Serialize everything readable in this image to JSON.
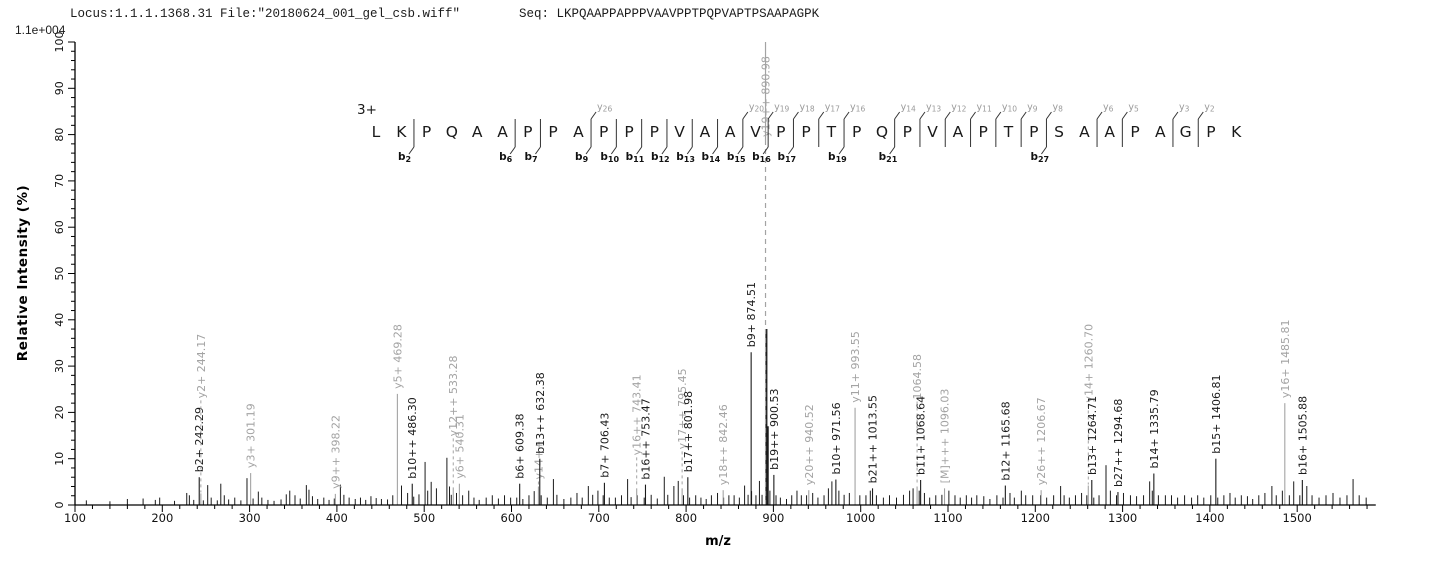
{
  "header": {
    "locus_file": "Locus:1.1.1.1368.31 File:\"20180624_001_gel_csb.wiff\"",
    "seq_label": "Seq:",
    "seq_value": "LKPQAAPPAPPPVAAVPPTPQPVAPTPSAAPAGPK",
    "max_intensity": "1.1e+004"
  },
  "colors": {
    "b_ion": "#1a1a1a",
    "y_ion": "#a3a3a3",
    "axis": "#000000",
    "background_peak": "#1a1a1a",
    "precursor_dash": "#a3a3a3"
  },
  "sequence_annotation": {
    "charge_label": "3+",
    "sequence": "LKPQAAPPAPPPVAAVPPTPQPVAPTPSAAPAGPK",
    "b_ions": [
      2,
      6,
      7,
      9,
      10,
      11,
      12,
      13,
      14,
      15,
      16,
      17,
      19,
      21,
      27
    ],
    "y_ions": [
      {
        "label": "26",
        "after_residue": 9
      },
      {
        "label": "20",
        "after_residue": 15
      },
      {
        "label": "19",
        "after_residue": 16
      },
      {
        "label": "18",
        "after_residue": 17
      },
      {
        "label": "17",
        "after_residue": 18
      },
      {
        "label": "16",
        "after_residue": 19
      },
      {
        "label": "14",
        "after_residue": 21
      },
      {
        "label": "13",
        "after_residue": 22
      },
      {
        "label": "12",
        "after_residue": 23
      },
      {
        "label": "11",
        "after_residue": 24
      },
      {
        "label": "10",
        "after_residue": 25
      },
      {
        "label": "9",
        "after_residue": 26
      },
      {
        "label": "8",
        "after_residue": 27
      },
      {
        "label": "6",
        "after_residue": 29
      },
      {
        "label": "5",
        "after_residue": 30
      },
      {
        "label": "3",
        "after_residue": 32
      },
      {
        "label": "2",
        "after_residue": 33
      }
    ]
  },
  "chart_data": {
    "type": "bar",
    "subtype": "ms2-fragment-centroid-spectrum",
    "title": "",
    "xlabel": "m/z",
    "ylabel": "Relative  Intensity  (%)",
    "x_range": [
      100,
      1590
    ],
    "y_range": [
      0,
      100
    ],
    "x_major_tick": 100,
    "x_minor_tick": 20,
    "y_major_tick": 10,
    "y_minor_tick": 2,
    "x_tick_labels": [
      100,
      200,
      300,
      400,
      500,
      600,
      700,
      800,
      900,
      1000,
      1100,
      1200,
      1300,
      1400,
      1500
    ],
    "y_tick_labels": [
      0,
      10,
      20,
      30,
      40,
      50,
      60,
      70,
      80,
      90,
      100
    ],
    "grid": false,
    "max_intensity_counts": "1.1e+004",
    "labeled_peaks": [
      {
        "mz": 242.29,
        "intensity_pct": 6.0,
        "ion": "b",
        "label": "b2+ 242.29"
      },
      {
        "mz": 244.17,
        "intensity_pct": 2.5,
        "ion": "y",
        "label": "y2+ 244.17",
        "raise": 90,
        "dashed_leader": true
      },
      {
        "mz": 301.19,
        "intensity_pct": 6.9,
        "ion": "y",
        "label": "y3+ 301.19"
      },
      {
        "mz": 398.22,
        "intensity_pct": 2.4,
        "ion": "y",
        "label": "y9++ 398.22"
      },
      {
        "mz": 469.28,
        "intensity_pct": 24,
        "ion": "y",
        "label": "y5+ 469.28"
      },
      {
        "mz": 486.3,
        "intensity_pct": 4.6,
        "ion": "b",
        "label": "b10++ 486.30"
      },
      {
        "mz": 533.28,
        "intensity_pct": 3.8,
        "ion": "y",
        "label": "y12++ 533.28",
        "raise": 46,
        "dashed_leader": true
      },
      {
        "mz": 540.31,
        "intensity_pct": 4.6,
        "ion": "y",
        "label": "y6+ 540.31"
      },
      {
        "mz": 609.38,
        "intensity_pct": 4.6,
        "ion": "b",
        "label": "b6+ 609.38"
      },
      {
        "mz": 630.85,
        "intensity_pct": 4.0,
        "ion": "y",
        "label": "y14++",
        "raise": 2,
        "dashed_leader": true
      },
      {
        "mz": 632.38,
        "intensity_pct": 10,
        "ion": "b",
        "label": "b13++ 632.38"
      },
      {
        "mz": 706.43,
        "intensity_pct": 4.8,
        "ion": "b",
        "label": "b7+ 706.43"
      },
      {
        "mz": 743.41,
        "intensity_pct": 3.6,
        "ion": "y",
        "label": "y16++ 743.41",
        "raise": 28,
        "dashed_leader": true
      },
      {
        "mz": 753.47,
        "intensity_pct": 4.4,
        "ion": "b",
        "label": "b16++ 753.47"
      },
      {
        "mz": 795.45,
        "intensity_pct": 3.6,
        "ion": "y",
        "label": "y17++ 795.45",
        "raise": 34,
        "dashed_leader": true
      },
      {
        "mz": 801.98,
        "intensity_pct": 6.0,
        "ion": "b",
        "label": "b17++ 801.98"
      },
      {
        "mz": 842.46,
        "intensity_pct": 3.2,
        "ion": "y",
        "label": "y18++ 842.46"
      },
      {
        "mz": 874.51,
        "intensity_pct": 33,
        "ion": "b",
        "label": "b9+ 874.51"
      },
      {
        "mz": 890.98,
        "intensity_pct": 100,
        "ion": "y",
        "label": "y19++ 890.98",
        "dashed_line": true,
        "label_drop": 100
      },
      {
        "mz": 900.53,
        "intensity_pct": 6.5,
        "ion": "b",
        "label": "b19++ 900.53"
      },
      {
        "mz": 940.52,
        "intensity_pct": 3.2,
        "ion": "y",
        "label": "y20++ 940.52"
      },
      {
        "mz": 971.56,
        "intensity_pct": 5.5,
        "ion": "b",
        "label": "b10+ 971.56"
      },
      {
        "mz": 993.55,
        "intensity_pct": 21,
        "ion": "y",
        "label": "y11+ 993.55"
      },
      {
        "mz": 1013.55,
        "intensity_pct": 3.6,
        "ion": "b",
        "label": "b21++ 1013.55"
      },
      {
        "mz": 1064.58,
        "intensity_pct": 4.0,
        "ion": "y",
        "label": "1064.58",
        "raise": 82,
        "dashed_leader": true
      },
      {
        "mz": 1068.64,
        "intensity_pct": 5.4,
        "ion": "b",
        "label": "b11+ 1068.64"
      },
      {
        "mz": 1096.03,
        "intensity_pct": 3.6,
        "ion": "y",
        "label": "[M]+++ 1096.03"
      },
      {
        "mz": 1165.68,
        "intensity_pct": 4.2,
        "ion": "b",
        "label": "b12+ 1165.68"
      },
      {
        "mz": 1206.67,
        "intensity_pct": 3.2,
        "ion": "y",
        "label": "y26++ 1206.67"
      },
      {
        "mz": 1260.7,
        "intensity_pct": 4.2,
        "ion": "y",
        "label": "y14+ 1260.70",
        "raise": 78,
        "dashed_leader": true
      },
      {
        "mz": 1264.71,
        "intensity_pct": 5.4,
        "ion": "b",
        "label": "b13+ 1264.71"
      },
      {
        "mz": 1294.68,
        "intensity_pct": 2.8,
        "ion": "b",
        "label": "b27++ 1294.68"
      },
      {
        "mz": 1335.79,
        "intensity_pct": 6.8,
        "ion": "b",
        "label": "b14+ 1335.79"
      },
      {
        "mz": 1406.81,
        "intensity_pct": 10,
        "ion": "b",
        "label": "b15+ 1406.81"
      },
      {
        "mz": 1485.81,
        "intensity_pct": 22,
        "ion": "y",
        "label": "y16+ 1485.81"
      },
      {
        "mz": 1505.88,
        "intensity_pct": 5.4,
        "ion": "b",
        "label": "b16+ 1505.88"
      }
    ],
    "background_peaks": [
      [
        113,
        1
      ],
      [
        140,
        0.8
      ],
      [
        160,
        1.3
      ],
      [
        178,
        1.4
      ],
      [
        192,
        1.1
      ],
      [
        197,
        1.6
      ],
      [
        214,
        0.9
      ],
      [
        228,
        2.6
      ],
      [
        231,
        2.1
      ],
      [
        236,
        1.1
      ],
      [
        247,
        1
      ],
      [
        252,
        4.3
      ],
      [
        256,
        1.6
      ],
      [
        263,
        1
      ],
      [
        267,
        4.6
      ],
      [
        271,
        2.1
      ],
      [
        276,
        1.2
      ],
      [
        283,
        1.6
      ],
      [
        290,
        1
      ],
      [
        297,
        5.8
      ],
      [
        304,
        1.4
      ],
      [
        310,
        2.9
      ],
      [
        314,
        1.6
      ],
      [
        321,
        1.1
      ],
      [
        328,
        0.9
      ],
      [
        336,
        1.2
      ],
      [
        342,
        2.3
      ],
      [
        346,
        3.1
      ],
      [
        352,
        2.1
      ],
      [
        358,
        1.4
      ],
      [
        365,
        4.3
      ],
      [
        368,
        3.3
      ],
      [
        372,
        1.9
      ],
      [
        378,
        1.3
      ],
      [
        385,
        1.6
      ],
      [
        391,
        1.1
      ],
      [
        397,
        1.4
      ],
      [
        404,
        4.4
      ],
      [
        408,
        2.2
      ],
      [
        414,
        1.6
      ],
      [
        421,
        1.3
      ],
      [
        427,
        1.6
      ],
      [
        433,
        1.1
      ],
      [
        439,
        1.9
      ],
      [
        445,
        1.5
      ],
      [
        451,
        1.3
      ],
      [
        458,
        1.2
      ],
      [
        464,
        2.1
      ],
      [
        474,
        4.2
      ],
      [
        481,
        2.6
      ],
      [
        488,
        1.8
      ],
      [
        494,
        2.3
      ],
      [
        501,
        9.3
      ],
      [
        504,
        3.1
      ],
      [
        508,
        5.0
      ],
      [
        514,
        3.6
      ],
      [
        526,
        10.2
      ],
      [
        529,
        4.0
      ],
      [
        531,
        2.2
      ],
      [
        537,
        2.6
      ],
      [
        544,
        2.1
      ],
      [
        551,
        3.1
      ],
      [
        557,
        1.6
      ],
      [
        563,
        1.1
      ],
      [
        571,
        1.6
      ],
      [
        578,
        2.1
      ],
      [
        585,
        1.4
      ],
      [
        592,
        2.1
      ],
      [
        599,
        1.6
      ],
      [
        606,
        1.6
      ],
      [
        613,
        1.3
      ],
      [
        620,
        2.1
      ],
      [
        626,
        3
      ],
      [
        634,
        2.1
      ],
      [
        641,
        1.6
      ],
      [
        648,
        5.6
      ],
      [
        652,
        2.2
      ],
      [
        660,
        1.3
      ],
      [
        668,
        1.6
      ],
      [
        675,
        2.6
      ],
      [
        681,
        1.6
      ],
      [
        688,
        4.1
      ],
      [
        693,
        2.2
      ],
      [
        699,
        3.1
      ],
      [
        705,
        2.1
      ],
      [
        712,
        1.6
      ],
      [
        719,
        1.6
      ],
      [
        726,
        2.1
      ],
      [
        733,
        5.6
      ],
      [
        737,
        1.7
      ],
      [
        744,
        2.1
      ],
      [
        752,
        1.6
      ],
      [
        760,
        2.2
      ],
      [
        767,
        1.4
      ],
      [
        775,
        6.1
      ],
      [
        779,
        2.2
      ],
      [
        786,
        4.1
      ],
      [
        791,
        5.2
      ],
      [
        797,
        2.1
      ],
      [
        804,
        1.6
      ],
      [
        811,
        2.1
      ],
      [
        817,
        1.6
      ],
      [
        823,
        1.3
      ],
      [
        829,
        2.1
      ],
      [
        836,
        2.6
      ],
      [
        843,
        1.6
      ],
      [
        849,
        2.1
      ],
      [
        855,
        2.1
      ],
      [
        861,
        1.6
      ],
      [
        867,
        4.2
      ],
      [
        871,
        2.2
      ],
      [
        875,
        3
      ],
      [
        880,
        2.1
      ],
      [
        884,
        5.2
      ],
      [
        887,
        2.2
      ],
      [
        892,
        38
      ],
      [
        893.5,
        17
      ],
      [
        896,
        3.1
      ],
      [
        903,
        2.1
      ],
      [
        908,
        1.6
      ],
      [
        915,
        1.3
      ],
      [
        921,
        2.1
      ],
      [
        927,
        3.1
      ],
      [
        932,
        2.1
      ],
      [
        938,
        2.1
      ],
      [
        945,
        2.6
      ],
      [
        951,
        1.6
      ],
      [
        958,
        2.1
      ],
      [
        963,
        3.6
      ],
      [
        967,
        5.1
      ],
      [
        975,
        3.1
      ],
      [
        981,
        2.2
      ],
      [
        987,
        2.6
      ],
      [
        999,
        2.1
      ],
      [
        1006,
        2.1
      ],
      [
        1011,
        3.1
      ],
      [
        1018,
        2.1
      ],
      [
        1026,
        1.6
      ],
      [
        1033,
        2.1
      ],
      [
        1041,
        1.6
      ],
      [
        1049,
        2.2
      ],
      [
        1056,
        3.1
      ],
      [
        1060,
        3.6
      ],
      [
        1067,
        3.1
      ],
      [
        1073,
        2.6
      ],
      [
        1079,
        1.6
      ],
      [
        1086,
        2.1
      ],
      [
        1093,
        2.2
      ],
      [
        1101,
        3.1
      ],
      [
        1108,
        2.1
      ],
      [
        1114,
        1.6
      ],
      [
        1121,
        2.1
      ],
      [
        1127,
        1.6
      ],
      [
        1133,
        2.1
      ],
      [
        1141,
        1.9
      ],
      [
        1148,
        1.3
      ],
      [
        1156,
        2.1
      ],
      [
        1163,
        1.6
      ],
      [
        1171,
        2.6
      ],
      [
        1176,
        1.6
      ],
      [
        1184,
        3.1
      ],
      [
        1189,
        2.1
      ],
      [
        1197,
        2.1
      ],
      [
        1206,
        2.1
      ],
      [
        1213,
        1.6
      ],
      [
        1221,
        2.1
      ],
      [
        1229,
        4.1
      ],
      [
        1233,
        2.1
      ],
      [
        1239,
        1.6
      ],
      [
        1246,
        2.1
      ],
      [
        1253,
        2.6
      ],
      [
        1259,
        2.1
      ],
      [
        1267,
        1.6
      ],
      [
        1273,
        2.1
      ],
      [
        1281,
        8.6
      ],
      [
        1286,
        3.1
      ],
      [
        1293,
        2.1
      ],
      [
        1301,
        2.6
      ],
      [
        1309,
        2.1
      ],
      [
        1316,
        1.9
      ],
      [
        1324,
        2.1
      ],
      [
        1331,
        5.1
      ],
      [
        1334,
        3.1
      ],
      [
        1341,
        2.1
      ],
      [
        1349,
        2.1
      ],
      [
        1356,
        2.1
      ],
      [
        1363,
        1.6
      ],
      [
        1371,
        2.1
      ],
      [
        1379,
        1.6
      ],
      [
        1386,
        2.1
      ],
      [
        1393,
        1.6
      ],
      [
        1401,
        2.1
      ],
      [
        1409,
        1.6
      ],
      [
        1416,
        2.1
      ],
      [
        1423,
        2.6
      ],
      [
        1429,
        1.6
      ],
      [
        1436,
        2.1
      ],
      [
        1443,
        1.9
      ],
      [
        1449,
        1.3
      ],
      [
        1456,
        2.1
      ],
      [
        1463,
        2.6
      ],
      [
        1471,
        4.1
      ],
      [
        1476,
        2.1
      ],
      [
        1483,
        3.1
      ],
      [
        1491,
        2.1
      ],
      [
        1496,
        5.1
      ],
      [
        1503,
        2.1
      ],
      [
        1511,
        4.1
      ],
      [
        1517,
        2.1
      ],
      [
        1525,
        1.6
      ],
      [
        1533,
        2.1
      ],
      [
        1541,
        2.6
      ],
      [
        1549,
        1.6
      ],
      [
        1557,
        2.1
      ],
      [
        1564,
        5.6
      ],
      [
        1571,
        2.1
      ],
      [
        1579,
        1.6
      ]
    ]
  }
}
